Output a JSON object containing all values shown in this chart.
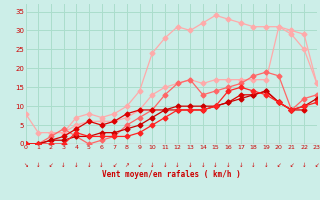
{
  "background_color": "#cceee8",
  "grid_color": "#aaddcc",
  "xlabel": "Vent moyen/en rafales ( km/h )",
  "xlim": [
    0,
    23
  ],
  "ylim": [
    0,
    37
  ],
  "yticks": [
    0,
    5,
    10,
    15,
    20,
    25,
    30,
    35
  ],
  "xticks": [
    0,
    1,
    2,
    3,
    4,
    5,
    6,
    7,
    8,
    9,
    10,
    11,
    12,
    13,
    14,
    15,
    16,
    17,
    18,
    19,
    20,
    21,
    22,
    23
  ],
  "series": [
    {
      "color": "#ffaaaa",
      "x": [
        0,
        1,
        2,
        3,
        4,
        5,
        6,
        7,
        8,
        9,
        10,
        11,
        12,
        13,
        14,
        15,
        16,
        17,
        18,
        19,
        20,
        21,
        22,
        23
      ],
      "y": [
        8,
        3,
        3,
        3,
        7,
        8,
        7,
        8,
        10,
        14,
        24,
        28,
        31,
        30,
        32,
        34,
        33,
        32,
        31,
        31,
        31,
        30,
        29,
        16
      ]
    },
    {
      "color": "#ffaaaa",
      "x": [
        0,
        1,
        2,
        3,
        4,
        5,
        6,
        7,
        8,
        9,
        10,
        11,
        12,
        13,
        14,
        15,
        16,
        17,
        18,
        19,
        20,
        21,
        22,
        23
      ],
      "y": [
        null,
        null,
        null,
        3,
        5,
        6,
        6,
        6,
        7,
        9,
        13,
        15,
        16,
        17,
        16,
        17,
        17,
        17,
        17,
        17,
        31,
        29,
        25,
        16
      ]
    },
    {
      "color": "#ff6666",
      "x": [
        0,
        1,
        2,
        3,
        4,
        5,
        6,
        7,
        8,
        9,
        10,
        11,
        12,
        13,
        14,
        15,
        16,
        17,
        18,
        19,
        20,
        21,
        22,
        23
      ],
      "y": [
        0,
        0,
        2,
        4,
        2,
        0,
        1,
        2,
        5,
        7,
        9,
        13,
        16,
        17,
        13,
        14,
        15,
        16,
        18,
        19,
        18,
        9,
        12,
        13
      ]
    },
    {
      "color": "#dd0000",
      "x": [
        0,
        1,
        2,
        3,
        4,
        5,
        6,
        7,
        8,
        9,
        10,
        11,
        12,
        13,
        14,
        15,
        16,
        17,
        18,
        19,
        20,
        21,
        22,
        23
      ],
      "y": [
        0,
        0,
        1,
        2,
        4,
        6,
        5,
        6,
        8,
        9,
        9,
        9,
        9,
        9,
        9,
        10,
        11,
        13,
        13,
        14,
        11,
        9,
        9,
        null
      ]
    },
    {
      "color": "#cc0000",
      "x": [
        0,
        1,
        2,
        3,
        4,
        5,
        6,
        7,
        8,
        9,
        10,
        11,
        12,
        13,
        14,
        15,
        16,
        17,
        18,
        19,
        20,
        21,
        22,
        23
      ],
      "y": [
        0,
        0,
        1,
        1,
        2,
        2,
        3,
        3,
        4,
        5,
        7,
        9,
        10,
        10,
        10,
        10,
        11,
        12,
        13,
        14,
        11,
        9,
        10,
        12
      ]
    },
    {
      "color": "#ff2222",
      "x": [
        0,
        1,
        2,
        3,
        4,
        5,
        6,
        7,
        8,
        9,
        10,
        11,
        12,
        13,
        14,
        15,
        16,
        17,
        18,
        19,
        20,
        21,
        22,
        23
      ],
      "y": [
        0,
        0,
        0,
        0,
        3,
        2,
        2,
        2,
        2,
        3,
        5,
        7,
        9,
        9,
        9,
        10,
        14,
        15,
        14,
        13,
        11,
        9,
        10,
        11
      ]
    }
  ],
  "arrows": [
    "↘",
    "↓",
    "↙",
    "↓",
    "↓",
    "↓",
    "↓",
    "↙",
    "↗",
    "↙",
    "↓",
    "↓",
    "↓",
    "↓",
    "↓",
    "↓",
    "↓",
    "↓",
    "↓",
    "↓",
    "↙",
    "↙",
    "↓",
    "↙"
  ],
  "marker_size": 2.5,
  "linewidth": 0.9
}
